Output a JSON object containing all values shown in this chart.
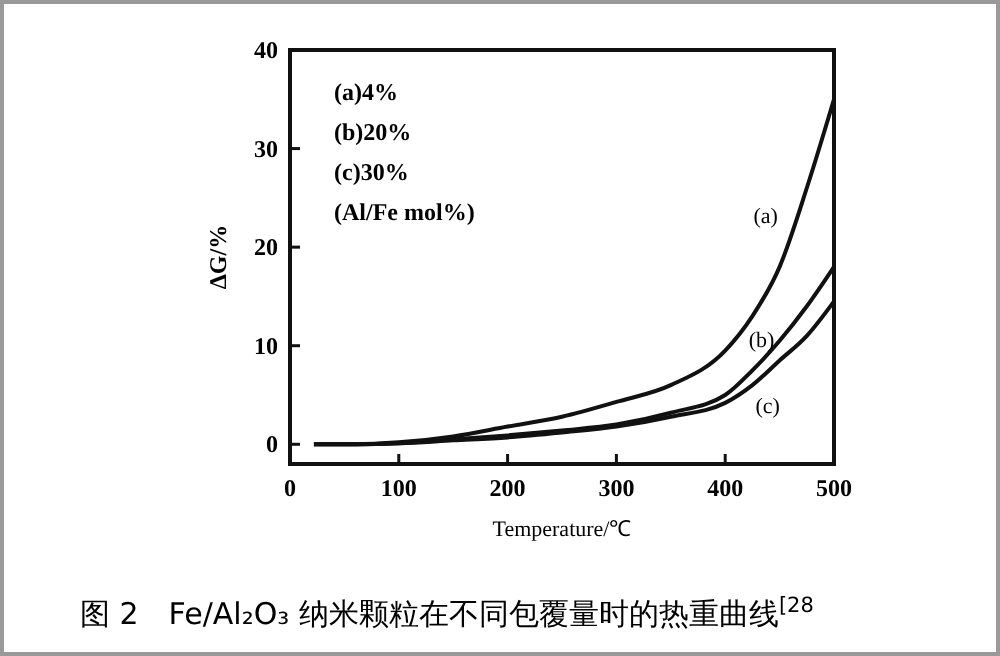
{
  "chart_data": {
    "type": "line",
    "title": "图 2　Fe/Al₂O₃ 纳米颗粒在不同包覆量时的热重曲线$^{[28}$",
    "xlabel": "Temperature/℃",
    "ylabel": "ΔG/%",
    "xlim": [
      0,
      500
    ],
    "ylim": [
      -2,
      40
    ],
    "xticks": [
      0,
      100,
      200,
      300,
      400,
      500
    ],
    "yticks": [
      0,
      10,
      20,
      30,
      40
    ],
    "grid": false,
    "marker": "none",
    "line_style": "solid",
    "series": [
      {
        "name": "(a)",
        "color": "#111111",
        "x": [
          22,
          60,
          100,
          150,
          200,
          250,
          300,
          350,
          400,
          425,
          450,
          475,
          500
        ],
        "values": [
          0,
          0,
          0.2,
          0.8,
          1.8,
          2.8,
          4.3,
          6,
          9.5,
          13,
          18,
          26,
          35
        ]
      },
      {
        "name": "(b)",
        "color": "#111111",
        "x": [
          22,
          60,
          100,
          150,
          200,
          250,
          300,
          350,
          400,
          425,
          450,
          475,
          500
        ],
        "values": [
          0,
          0,
          0.1,
          0.5,
          0.9,
          1.4,
          2,
          3.2,
          5,
          7.5,
          10.5,
          14,
          18
        ]
      },
      {
        "name": "(c)",
        "color": "#111111",
        "x": [
          22,
          60,
          100,
          150,
          200,
          250,
          300,
          350,
          400,
          425,
          450,
          475,
          500
        ],
        "values": [
          0,
          0,
          0.1,
          0.4,
          0.7,
          1.2,
          1.8,
          2.8,
          4.2,
          6,
          8.5,
          11,
          14.5
        ]
      }
    ],
    "annotations": [
      "(a)4%",
      "(b)20%",
      "(c)30%",
      "(Al/Fe mol%)"
    ]
  }
}
